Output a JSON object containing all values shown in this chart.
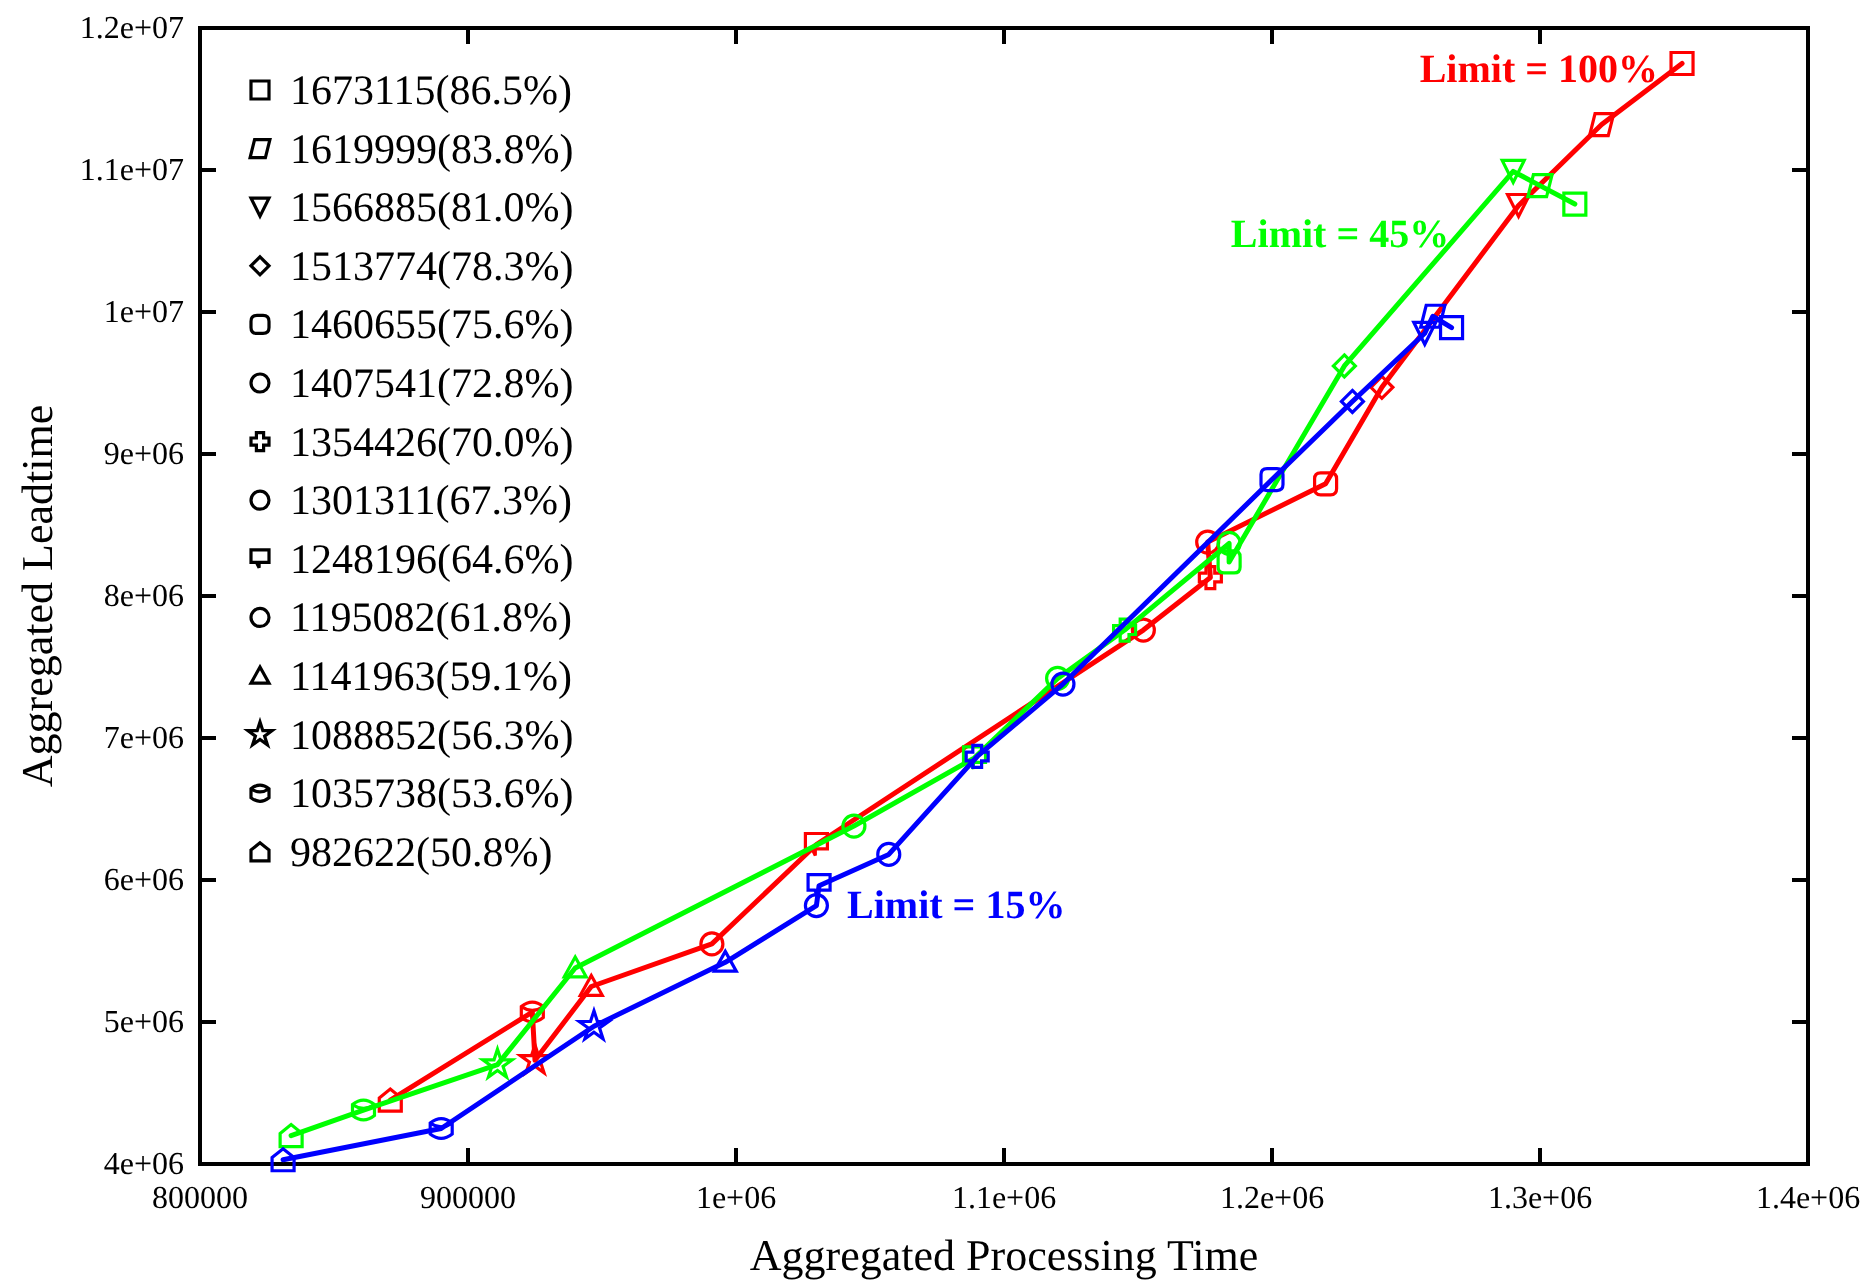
{
  "chart_data": {
    "type": "line",
    "xlabel": "Aggregated Processing Time",
    "ylabel": "Aggregated Leadtime",
    "xlim": [
      800000,
      1400000
    ],
    "ylim": [
      4000000,
      12000000
    ],
    "xticks": [
      800000,
      900000,
      {
        "value": 1000000,
        "label": "1e+06"
      },
      {
        "value": 1100000,
        "label": "1.1e+06"
      },
      {
        "value": 1200000,
        "label": "1.2e+06"
      },
      {
        "value": 1300000,
        "label": "1.3e+06"
      },
      {
        "value": 1400000,
        "label": "1.4e+06"
      }
    ],
    "yticks": [
      {
        "value": 4000000,
        "label": "4e+06"
      },
      {
        "value": 5000000,
        "label": "5e+06"
      },
      {
        "value": 6000000,
        "label": "6e+06"
      },
      {
        "value": 7000000,
        "label": "7e+06"
      },
      {
        "value": 8000000,
        "label": "8e+06"
      },
      {
        "value": 9000000,
        "label": "9e+06"
      },
      {
        "value": 10000000,
        "label": "1e+07"
      },
      {
        "value": 11000000,
        "label": "1.1e+07"
      },
      {
        "value": 12000000,
        "label": "1.2e+07"
      }
    ],
    "grid": false,
    "series": [
      {
        "name": "Limit = 100%",
        "color": "#ff0000",
        "marker": "circle",
        "x": [
          871000,
          924000,
          925000,
          946000,
          991000,
          1030000,
          1152000,
          1177000,
          1176000,
          1220000,
          1241000,
          1292000,
          1323000,
          1353000
        ],
        "values": [
          4450000,
          5070000,
          4730000,
          5250000,
          5550000,
          6250000,
          7760000,
          8130000,
          8380000,
          8790000,
          9470000,
          10750000,
          11320000,
          11750000
        ]
      },
      {
        "name": "Limit = 45%",
        "color": "#00ff00",
        "marker": "circle",
        "x": [
          834000,
          861000,
          911000,
          940000,
          1044000,
          1089000,
          1120000,
          1145000,
          1184000,
          1184000,
          1227000,
          1290000,
          1300000,
          1313000
        ],
        "values": [
          4200000,
          4380000,
          4700000,
          5380000,
          6380000,
          6860000,
          7420000,
          7760000,
          8370000,
          8240000,
          9620000,
          10990000,
          10890000,
          10760000
        ]
      },
      {
        "name": "Limit = 15%",
        "color": "#0000ff",
        "marker": "circle",
        "x": [
          831000,
          890000,
          947000,
          996000,
          1030000,
          1031000,
          1057000,
          1090000,
          1122000,
          1200000,
          1230000,
          1257000,
          1260000,
          1267000
        ],
        "values": [
          4030000,
          4250000,
          4970000,
          5420000,
          5820000,
          5960000,
          6180000,
          6870000,
          7380000,
          8820000,
          9370000,
          9850000,
          9970000,
          9890000
        ]
      }
    ],
    "annotations": [
      "1673115(86.5%)",
      "1619999(83.8%)",
      "1566885(81.0%)",
      "1513774(78.3%)",
      "1460655(75.6%)",
      "1407541(72.8%)",
      "1354426(70.0%)",
      "1301311(67.3%)",
      "1248196(64.6%)",
      "1195082(61.8%)",
      "1141963(59.1%)",
      "1088852(56.3%)",
      "1035738(53.6%)",
      "982622(50.8%)"
    ]
  }
}
